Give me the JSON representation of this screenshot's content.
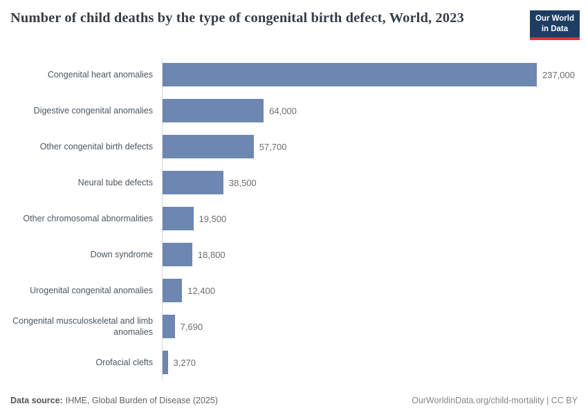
{
  "header": {
    "title": "Number of child deaths by the type of congenital birth defect, World, 2023",
    "logo": {
      "line1": "Our World",
      "line2": "in Data",
      "bg_color": "#1d3d63",
      "accent_color": "#d7363c"
    }
  },
  "chart_data": {
    "type": "bar",
    "orientation": "horizontal",
    "title": "Number of child deaths by the type of congenital birth defect, World, 2023",
    "categories": [
      "Congenital heart anomalies",
      "Digestive congenital anomalies",
      "Other congenital birth defects",
      "Neural tube defects",
      "Other chromosomal abnormalities",
      "Down syndrome",
      "Urogenital congenital anomalies",
      "Congenital musculoskeletal and limb anomalies",
      "Orofacial clefts"
    ],
    "values": [
      237000,
      64000,
      57700,
      38500,
      19500,
      18800,
      12400,
      7690,
      3270
    ],
    "value_labels": [
      "237,000",
      "64,000",
      "57,700",
      "38,500",
      "19,500",
      "18,800",
      "12,400",
      "7,690",
      "3,270"
    ],
    "xlim": [
      0,
      237000
    ],
    "bar_color": "#6e87b1",
    "grid": false,
    "legend": "none",
    "value_labels_shown": true
  },
  "footer": {
    "source_label": "Data source:",
    "source_text": "IHME, Global Burden of Disease (2025)",
    "rights": "OurWorldinData.org/child-mortality | CC BY"
  }
}
